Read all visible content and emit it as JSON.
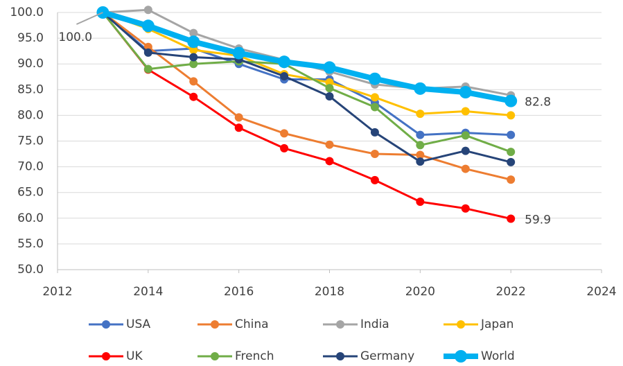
{
  "chart_data": {
    "type": "line",
    "x": [
      2013,
      2014,
      2015,
      2016,
      2017,
      2018,
      2019,
      2020,
      2021,
      2022
    ],
    "series": [
      {
        "name": "USA",
        "color": "#4472c4",
        "values": [
          100,
          92.5,
          93.0,
          90.0,
          87.0,
          87.0,
          82.5,
          76.2,
          76.6,
          76.2
        ]
      },
      {
        "name": "China",
        "color": "#ed7d31",
        "values": [
          100,
          93.3,
          86.6,
          79.6,
          76.5,
          74.3,
          72.5,
          72.3,
          69.6,
          67.5
        ]
      },
      {
        "name": "India",
        "color": "#a5a5a5",
        "values": [
          100,
          100.5,
          96.0,
          93.0,
          90.8,
          88.5,
          86.0,
          85.2,
          85.6,
          83.9
        ]
      },
      {
        "name": "Japan",
        "color": "#ffc000",
        "values": [
          100,
          96.8,
          92.7,
          91.6,
          88.0,
          86.4,
          83.5,
          80.3,
          80.8,
          80.0
        ]
      },
      {
        "name": "UK",
        "color": "#ff0000",
        "values": [
          100,
          88.9,
          83.6,
          77.6,
          73.6,
          71.1,
          67.4,
          63.2,
          61.9,
          59.9
        ],
        "value_labels": [
          null,
          null,
          null,
          null,
          null,
          null,
          null,
          null,
          null,
          "59.9"
        ]
      },
      {
        "name": "French",
        "color": "#70ad47",
        "values": [
          100,
          89.0,
          90.0,
          90.5,
          90.0,
          85.3,
          81.6,
          74.2,
          76.1,
          72.9
        ]
      },
      {
        "name": "Germany",
        "color": "#264478",
        "values": [
          100,
          92.2,
          91.3,
          90.9,
          87.6,
          83.7,
          76.7,
          71.0,
          73.1,
          70.9
        ]
      },
      {
        "name": "World",
        "color": "#00b0f0",
        "values": [
          100,
          97.4,
          94.3,
          92.1,
          90.4,
          89.3,
          87.1,
          85.2,
          84.5,
          82.8
        ],
        "value_labels": [
          "100.0",
          null,
          null,
          null,
          null,
          null,
          null,
          null,
          null,
          "82.8"
        ]
      }
    ],
    "xlim": [
      2012,
      2024
    ],
    "xticks": [
      2012,
      2014,
      2016,
      2018,
      2020,
      2022,
      2024
    ],
    "ylim": [
      50,
      100
    ],
    "yticks": [
      {
        "value": 50,
        "label": "50.0"
      },
      {
        "value": 55,
        "label": "55.0"
      },
      {
        "value": 60,
        "label": "60.0"
      },
      {
        "value": 65,
        "label": "65.0"
      },
      {
        "value": 70,
        "label": "70.0"
      },
      {
        "value": 75,
        "label": "75.0"
      },
      {
        "value": 80,
        "label": "80.0"
      },
      {
        "value": 85,
        "label": "85.0"
      },
      {
        "value": 90,
        "label": "90.0"
      },
      {
        "value": 95,
        "label": "95.0"
      },
      {
        "value": 100,
        "label": "100.0"
      }
    ],
    "grid": true,
    "legend": "bottom"
  }
}
